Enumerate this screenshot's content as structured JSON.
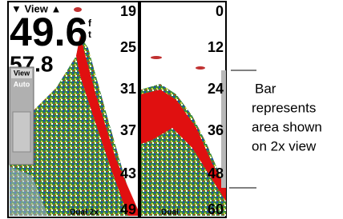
{
  "screen": {
    "view_label": "▼ View ▲",
    "depth": "49.6",
    "unit_top": "f",
    "unit_bottom": "t",
    "secondary": "57.8",
    "menu": [
      "View",
      "Auto"
    ],
    "left_scale": [
      "19",
      "25",
      "31",
      "37",
      "43",
      "49"
    ],
    "right_scale": [
      "0",
      "12",
      "24",
      "36",
      "48",
      "60"
    ],
    "left_mode": "Dual 2x",
    "right_mode": "Dual"
  },
  "annotation": {
    "lines": [
      "Bar",
      "represents",
      "area shown",
      "on 2x view"
    ]
  }
}
